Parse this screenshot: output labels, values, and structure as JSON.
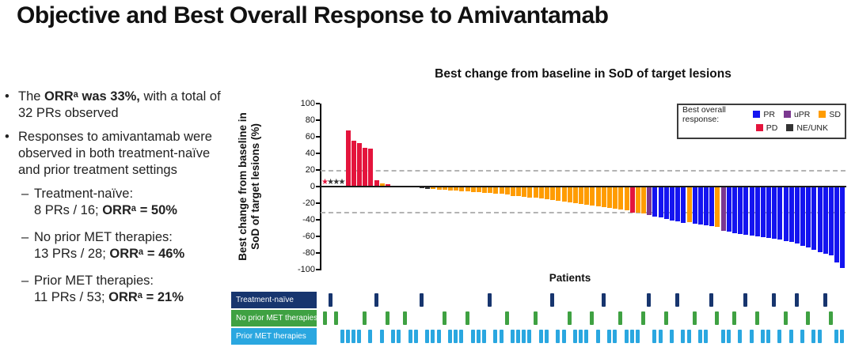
{
  "slide": {
    "title": "Objective and Best Overall Response to Amivantamab"
  },
  "left_panel": {
    "marker": "•",
    "sub_marker": "–",
    "bullets": [
      {
        "pre": "The ",
        "bold": "ORRᵃ was 33%,",
        "post": " with a total of 32 PRs observed"
      },
      {
        "pre": "",
        "bold": "",
        "post": "Responses to amivantamab were observed in both treatment-naïve and prior treatment settings"
      }
    ],
    "sub_bullets": [
      {
        "line1": "Treatment-naïve:",
        "line2_pre": "8 PRs / 16; ",
        "line2_bold": "ORRᵃ = 50%"
      },
      {
        "line1": "No prior MET therapies:",
        "line2_pre": "13 PRs / 28; ",
        "line2_bold": "ORRᵃ = 46%"
      },
      {
        "line1": "Prior MET therapies:",
        "line2_pre": "11 PRs / 53; ",
        "line2_bold": "ORRᵃ = 21%"
      }
    ]
  },
  "chart_data": {
    "type": "bar",
    "subtype": "waterfall",
    "title": "Best change from baseline in SoD of target lesions",
    "ylabel": "Best change from baseline in SoD of target lesions (%)",
    "ylabel_lines": [
      "Best change from baseline in",
      "SoD of target lesions (%)"
    ],
    "xlabel": "Patients",
    "ylim": [
      -100,
      100
    ],
    "y_ticks": [
      100,
      80,
      60,
      40,
      20,
      0,
      -20,
      -40,
      -60,
      -80,
      -100
    ],
    "reference_lines": [
      20,
      -30
    ],
    "grid": "dashed-reference-only",
    "legend_position": "top-right",
    "legend": {
      "title": "Best overall response:",
      "items": [
        {
          "label": "PR",
          "color": "#1414f0"
        },
        {
          "label": "uPR",
          "color": "#7b3890"
        },
        {
          "label": "SD",
          "color": "#ff9c00"
        },
        {
          "label": "PD",
          "color": "#e4143c"
        },
        {
          "label": "NE/UNK",
          "color": "#333333"
        }
      ]
    },
    "colors": {
      "PR": "#1414f0",
      "uPR": "#7b3890",
      "SD": "#ff9c00",
      "PD": "#e4143c",
      "NE": "#333333"
    },
    "star_note": "patients with null value shown as asterisks at baseline (1 red PD, 3 dark NE/UNK)",
    "groups": [
      {
        "id": "TN",
        "label": "Treatment-naïve",
        "color": "#17356e"
      },
      {
        "id": "NP",
        "label": "No prior MET therapies",
        "color": "#3fa142"
      },
      {
        "id": "PM",
        "label": "Prior MET therapies",
        "color": "#2aa7e0"
      }
    ],
    "patients_format": [
      "best_change_pct",
      "response",
      "group"
    ],
    "patients": [
      [
        null,
        "PD",
        "NP"
      ],
      [
        null,
        "NE",
        "TN"
      ],
      [
        null,
        "NE",
        "NP"
      ],
      [
        null,
        "NE",
        "PM"
      ],
      [
        68,
        "PD",
        "PM"
      ],
      [
        55,
        "PD",
        "PM"
      ],
      [
        52,
        "PD",
        "PM"
      ],
      [
        47,
        "PD",
        "NP"
      ],
      [
        46,
        "PD",
        "PM"
      ],
      [
        8,
        "PD",
        "TN"
      ],
      [
        4,
        "SD",
        "PM"
      ],
      [
        3,
        "PD",
        "NP"
      ],
      [
        0,
        "SD",
        "PM"
      ],
      [
        0,
        "SD",
        "PM"
      ],
      [
        0,
        "SD",
        "NP"
      ],
      [
        0,
        "SD",
        "PM"
      ],
      [
        0,
        "SD",
        "PM"
      ],
      [
        -1,
        "NE",
        "TN"
      ],
      [
        -2,
        "NE",
        "PM"
      ],
      [
        -2,
        "SD",
        "PM"
      ],
      [
        -3,
        "SD",
        "PM"
      ],
      [
        -3,
        "SD",
        "NP"
      ],
      [
        -4,
        "SD",
        "PM"
      ],
      [
        -4,
        "SD",
        "PM"
      ],
      [
        -5,
        "SD",
        "PM"
      ],
      [
        -5,
        "SD",
        "NP"
      ],
      [
        -6,
        "SD",
        "PM"
      ],
      [
        -6,
        "SD",
        "PM"
      ],
      [
        -7,
        "SD",
        "PM"
      ],
      [
        -7,
        "SD",
        "TN"
      ],
      [
        -8,
        "SD",
        "PM"
      ],
      [
        -8,
        "SD",
        "PM"
      ],
      [
        -9,
        "SD",
        "NP"
      ],
      [
        -10,
        "SD",
        "PM"
      ],
      [
        -10,
        "SD",
        "PM"
      ],
      [
        -11,
        "SD",
        "PM"
      ],
      [
        -12,
        "SD",
        "PM"
      ],
      [
        -12,
        "SD",
        "NP"
      ],
      [
        -13,
        "SD",
        "PM"
      ],
      [
        -14,
        "SD",
        "PM"
      ],
      [
        -15,
        "SD",
        "TN"
      ],
      [
        -16,
        "SD",
        "PM"
      ],
      [
        -17,
        "SD",
        "PM"
      ],
      [
        -18,
        "SD",
        "NP"
      ],
      [
        -19,
        "SD",
        "PM"
      ],
      [
        -20,
        "SD",
        "PM"
      ],
      [
        -21,
        "SD",
        "PM"
      ],
      [
        -22,
        "SD",
        "NP"
      ],
      [
        -23,
        "SD",
        "PM"
      ],
      [
        -24,
        "SD",
        "TN"
      ],
      [
        -25,
        "SD",
        "PM"
      ],
      [
        -26,
        "SD",
        "PM"
      ],
      [
        -27,
        "SD",
        "NP"
      ],
      [
        -28,
        "SD",
        "PM"
      ],
      [
        -30,
        "PD",
        "PM"
      ],
      [
        -30,
        "SD",
        "PM"
      ],
      [
        -31,
        "SD",
        "NP"
      ],
      [
        -33,
        "uPR",
        "TN"
      ],
      [
        -35,
        "PR",
        "PM"
      ],
      [
        -36,
        "PR",
        "PM"
      ],
      [
        -38,
        "PR",
        "NP"
      ],
      [
        -40,
        "PR",
        "PM"
      ],
      [
        -41,
        "PR",
        "TN"
      ],
      [
        -43,
        "PR",
        "PM"
      ],
      [
        -42,
        "SD",
        "PM"
      ],
      [
        -44,
        "PR",
        "NP"
      ],
      [
        -45,
        "PR",
        "PM"
      ],
      [
        -46,
        "PR",
        "PM"
      ],
      [
        -47,
        "PR",
        "TN"
      ],
      [
        -48,
        "SD",
        "NP"
      ],
      [
        -52,
        "uPR",
        "PM"
      ],
      [
        -53,
        "PR",
        "PM"
      ],
      [
        -55,
        "PR",
        "NP"
      ],
      [
        -56,
        "PR",
        "PM"
      ],
      [
        -57,
        "PR",
        "TN"
      ],
      [
        -58,
        "PR",
        "PM"
      ],
      [
        -59,
        "PR",
        "NP"
      ],
      [
        -60,
        "PR",
        "PM"
      ],
      [
        -61,
        "PR",
        "PM"
      ],
      [
        -62,
        "PR",
        "TN"
      ],
      [
        -63,
        "PR",
        "PM"
      ],
      [
        -65,
        "PR",
        "NP"
      ],
      [
        -66,
        "PR",
        "PM"
      ],
      [
        -68,
        "PR",
        "TN"
      ],
      [
        -70,
        "PR",
        "PM"
      ],
      [
        -72,
        "PR",
        "NP"
      ],
      [
        -75,
        "PR",
        "PM"
      ],
      [
        -78,
        "PR",
        "PM"
      ],
      [
        -80,
        "PR",
        "TN"
      ],
      [
        -82,
        "PR",
        "NP"
      ],
      [
        -90,
        "PR",
        "PM"
      ],
      [
        -97,
        "PR",
        "PM"
      ]
    ]
  }
}
